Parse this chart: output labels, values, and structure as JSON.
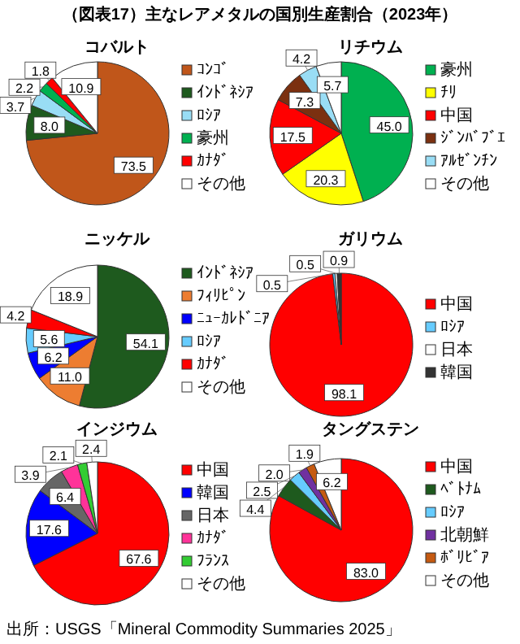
{
  "chart_data": [
    {
      "type": "pie",
      "title": "（図表17）主なレアメタルの国別生産割合（2023年）",
      "subtitle": "コバルト",
      "categories": [
        "ｺﾝｺﾞ",
        "ｲﾝﾄﾞﾈｼｱ",
        "ﾛｼｱ",
        "豪州",
        "ｶﾅﾀﾞ",
        "その他"
      ],
      "values": [
        73.5,
        8.0,
        3.7,
        2.2,
        1.8,
        10.9
      ],
      "value_labels": [
        "73.5",
        "8.0",
        "3.7",
        "2.2",
        "1.8",
        "10.9"
      ],
      "colors": [
        "#c0561a",
        "#1e5a1e",
        "#99ddf5",
        "#00b050",
        "#ff0000",
        "#ffffff"
      ],
      "legend": "right"
    },
    {
      "type": "pie",
      "subtitle": "リチウム",
      "categories": [
        "豪州",
        "ﾁﾘ",
        "中国",
        "ｼﾞﾝﾊﾞﾌﾞｴ",
        "ｱﾙｾﾞﾝﾁﾝ",
        "その他"
      ],
      "values": [
        45.0,
        20.3,
        17.5,
        7.3,
        4.2,
        5.7
      ],
      "value_labels": [
        "45.0",
        "20.3",
        "17.5",
        "7.3",
        "4.2",
        "5.7"
      ],
      "colors": [
        "#00b050",
        "#ffff00",
        "#ff0000",
        "#7b3010",
        "#99ddf5",
        "#ffffff"
      ],
      "legend": "right"
    },
    {
      "type": "pie",
      "subtitle": "ニッケル",
      "categories": [
        "ｲﾝﾄﾞﾈｼｱ",
        "ﾌｨﾘﾋﾟﾝ",
        "ﾆｭｰｶﾚﾄﾞﾆｱ",
        "ﾛｼｱ",
        "ｶﾅﾀﾞ",
        "その他"
      ],
      "values": [
        54.1,
        11.0,
        6.2,
        5.6,
        4.2,
        18.9
      ],
      "value_labels": [
        "54.1",
        "11.0",
        "6.2",
        "5.6",
        "4.2",
        "18.9"
      ],
      "colors": [
        "#1e5a1e",
        "#ed7d31",
        "#0000ff",
        "#66ccff",
        "#ff0000",
        "#ffffff"
      ],
      "legend": "right"
    },
    {
      "type": "pie",
      "subtitle": "ガリウム",
      "categories": [
        "中国",
        "ﾛｼｱ",
        "日本",
        "韓国"
      ],
      "values": [
        98.1,
        0.5,
        0.5,
        0.9
      ],
      "value_labels": [
        "98.1",
        "0.5",
        "0.5",
        "0.9"
      ],
      "colors": [
        "#ff0000",
        "#66ccff",
        "#ffffff",
        "#333333"
      ],
      "legend": "right"
    },
    {
      "type": "pie",
      "subtitle": "インジウム",
      "categories": [
        "中国",
        "韓国",
        "日本",
        "ｶﾅﾀﾞ",
        "ﾌﾗﾝｽ",
        "その他"
      ],
      "values": [
        67.6,
        17.6,
        6.4,
        3.9,
        2.1,
        2.4
      ],
      "value_labels": [
        "67.6",
        "17.6",
        "6.4",
        "3.9",
        "2.1",
        "2.4"
      ],
      "colors": [
        "#ff0000",
        "#0000ff",
        "#666666",
        "#ff3399",
        "#33cc33",
        "#ffffff"
      ],
      "legend": "right",
      "annotations": [
        "出所：USGS「Mineral Commodity Summaries 2025」"
      ]
    },
    {
      "type": "pie",
      "subtitle": "タングステン",
      "categories": [
        "中国",
        "ﾍﾞﾄﾅﾑ",
        "ﾛｼｱ",
        "北朝鮮",
        "ﾎﾞﾘﾋﾞｱ",
        "その他"
      ],
      "values": [
        83.0,
        4.4,
        2.5,
        2.0,
        1.9,
        6.2
      ],
      "value_labels": [
        "83.0",
        "4.4",
        "2.5",
        "2.0",
        "1.9",
        "6.2"
      ],
      "colors": [
        "#ff0000",
        "#1e5a1e",
        "#66ccff",
        "#7030a0",
        "#c55a11",
        "#ffffff"
      ],
      "legend": "right"
    }
  ]
}
